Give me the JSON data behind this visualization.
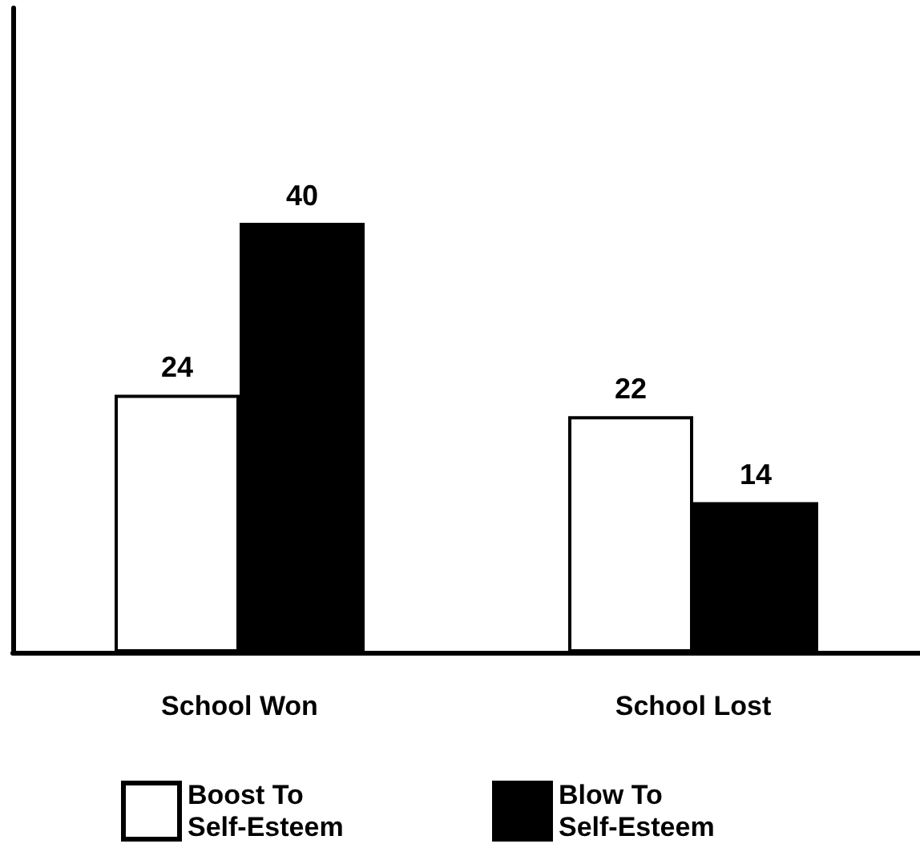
{
  "chart_data": {
    "type": "bar",
    "categories": [
      "School Won",
      "School Lost"
    ],
    "series": [
      {
        "name": "Boost To Self-Esteem",
        "color": "#ffffff",
        "values": [
          24,
          22
        ]
      },
      {
        "name": "Blow To Self-Esteem",
        "color": "#000000",
        "values": [
          40,
          14
        ]
      }
    ],
    "data_labels": true,
    "legend": "bottom",
    "grid": false,
    "tick_labels": "x"
  }
}
